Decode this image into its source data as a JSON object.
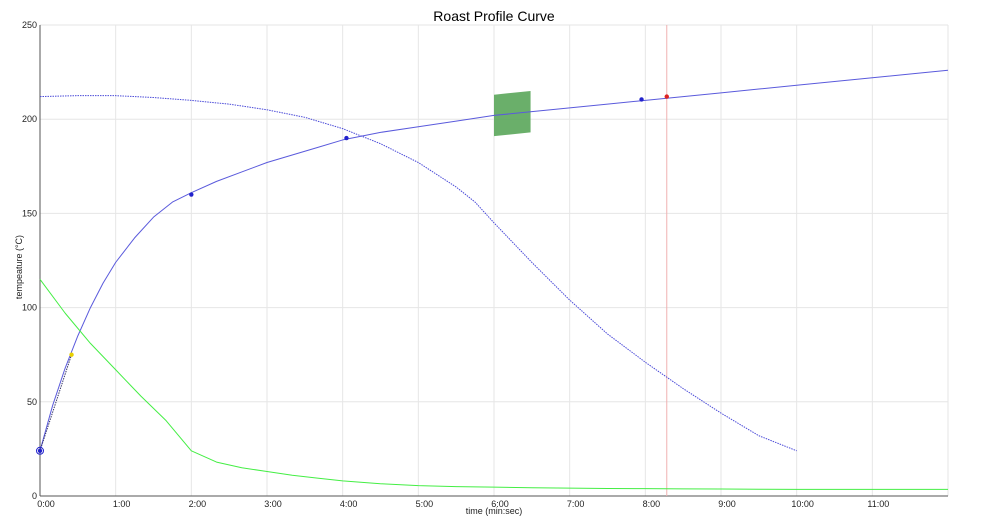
{
  "chart_data": {
    "type": "line",
    "title": "Roast Profile Curve",
    "xlabel": "time (min:sec)",
    "ylabel": "tempeature (°C)",
    "xlim": [
      0,
      720
    ],
    "ylim": [
      0,
      250
    ],
    "grid": true,
    "x_ticks": [
      {
        "value": 0,
        "label": "0:00"
      },
      {
        "value": 60,
        "label": "1:00"
      },
      {
        "value": 120,
        "label": "2:00"
      },
      {
        "value": 180,
        "label": "3:00"
      },
      {
        "value": 240,
        "label": "4:00"
      },
      {
        "value": 300,
        "label": "5:00"
      },
      {
        "value": 360,
        "label": "6:00"
      },
      {
        "value": 420,
        "label": "7:00"
      },
      {
        "value": 480,
        "label": "8:00"
      },
      {
        "value": 540,
        "label": "9:00"
      },
      {
        "value": 600,
        "label": "10:00"
      },
      {
        "value": 660,
        "label": "11:00"
      }
    ],
    "y_ticks": [
      {
        "value": 0,
        "label": "0"
      },
      {
        "value": 50,
        "label": "50"
      },
      {
        "value": 100,
        "label": "100"
      },
      {
        "value": 150,
        "label": "150"
      },
      {
        "value": 200,
        "label": "200"
      },
      {
        "value": 250,
        "label": "250"
      }
    ],
    "series": [
      {
        "style": "solid",
        "color": "#5a5adc",
        "x": [
          0,
          10,
          20,
          30,
          40,
          50,
          60,
          75,
          90,
          105,
          120,
          140,
          160,
          180,
          200,
          220,
          240,
          270,
          300,
          330,
          360,
          390,
          420,
          450,
          480,
          495,
          510,
          540,
          570,
          600,
          630,
          660,
          690,
          720
        ],
        "y": [
          24,
          48,
          68,
          85,
          100,
          113,
          124,
          137,
          148,
          156,
          161,
          167,
          172,
          177,
          181,
          185,
          189,
          193,
          196,
          199,
          202,
          204,
          206,
          208,
          210,
          211,
          212,
          214,
          216,
          218,
          220,
          222,
          224,
          226
        ]
      },
      {
        "style": "dotted",
        "color": "#4a4ad8",
        "x": [
          0,
          30,
          60,
          90,
          120,
          150,
          180,
          210,
          240,
          270,
          300,
          330,
          345,
          360,
          390,
          420,
          450,
          480,
          510,
          540,
          570,
          600
        ],
        "y": [
          212,
          212.5,
          212.5,
          211.5,
          210,
          208,
          205,
          201,
          195,
          187,
          177,
          164,
          156,
          145,
          124,
          104,
          86,
          71,
          57,
          44,
          32,
          24
        ]
      },
      {
        "style": "solid",
        "color": "#44ee44",
        "x": [
          0,
          20,
          40,
          60,
          80,
          100,
          120,
          140,
          160,
          180,
          200,
          220,
          240,
          270,
          300,
          330,
          360,
          390,
          420,
          450,
          480,
          510,
          540,
          570,
          600,
          630,
          660,
          690,
          720
        ],
        "y": [
          115,
          97,
          81,
          67,
          53,
          40,
          24,
          18,
          15,
          13,
          11,
          9.5,
          8,
          6.5,
          5.5,
          5,
          4.7,
          4.4,
          4.2,
          4,
          3.9,
          3.8,
          3.7,
          3.6,
          3.5,
          3.5,
          3.5,
          3.5,
          3.5
        ]
      },
      {
        "style": "dotted",
        "color": "#333366",
        "x": [
          0,
          25
        ],
        "y": [
          24,
          75
        ]
      }
    ],
    "markers": [
      {
        "x": 0,
        "y": 24,
        "color": "#2222cc"
      },
      {
        "x": 120,
        "y": 160,
        "color": "#2222cc"
      },
      {
        "x": 243,
        "y": 190,
        "color": "#2222cc"
      },
      {
        "x": 477,
        "y": 210.5,
        "color": "#2222cc"
      },
      {
        "x": 497,
        "y": 212,
        "color": "#dd2222"
      },
      {
        "x": 25,
        "y": 75,
        "color": "#e8d000"
      }
    ],
    "vertical_markers": [
      {
        "x": 497,
        "color": "#f0b0b0"
      }
    ],
    "target_box": {
      "color": "#5aa65a",
      "x": [
        360,
        389
      ],
      "y_left": [
        191,
        213
      ],
      "y_right": [
        193,
        215
      ]
    }
  }
}
